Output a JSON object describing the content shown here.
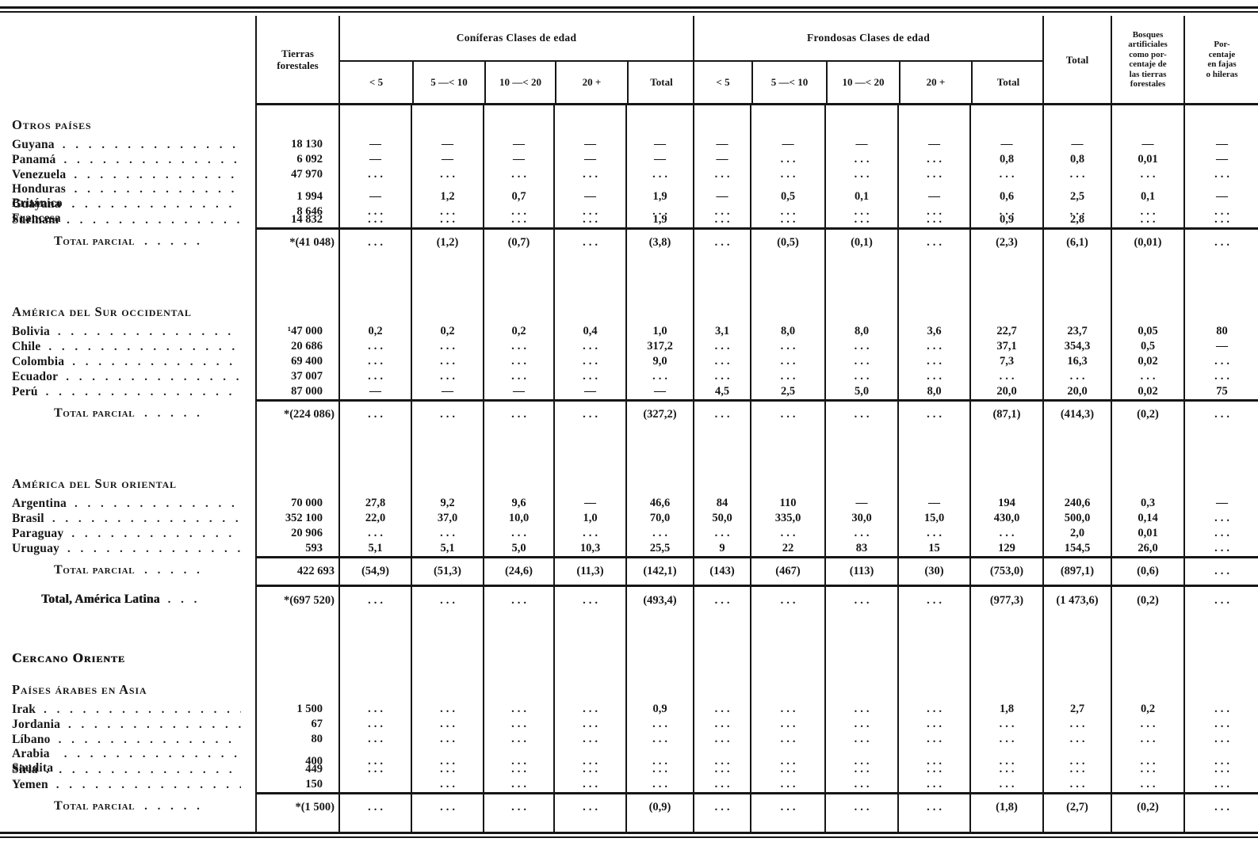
{
  "colors": {
    "ink": "#161616",
    "paper": "#ffffff"
  },
  "header": {
    "tierras": "Tierras\nforestales",
    "coniferas_group": "Coníferas Clases de edad",
    "frondosas_group": "Frondosas Clases de edad",
    "age_classes": [
      "< 5",
      "5 —< 10",
      "10 —< 20",
      "20 +",
      "Total"
    ],
    "total_label": "Total",
    "bosques": "Bosques\nartificiales\ncomo por-\ncentaje de\nlas tierras\nforestales",
    "porcentaje": "Por-\ncentaje\nen fajas\no hileras"
  },
  "rows": [
    {
      "type": "section",
      "label": "Otros países"
    },
    {
      "type": "country",
      "label": "Guyana",
      "cells": [
        "18 130",
        "—",
        "—",
        "—",
        "—",
        "—",
        "—",
        "—",
        "—",
        "—",
        "—",
        "—",
        "—",
        "—"
      ]
    },
    {
      "type": "country",
      "label": "Panamá",
      "cells": [
        "6 092",
        "—",
        "—",
        "—",
        "—",
        "—",
        "—",
        "...",
        "...",
        "...",
        "0,8",
        "0,8",
        "0,01",
        "—"
      ]
    },
    {
      "type": "country",
      "label": "Venezuela",
      "cells": [
        "47 970",
        "...",
        "...",
        "...",
        "...",
        "...",
        "...",
        "...",
        "...",
        "...",
        "...",
        "...",
        "...",
        "..."
      ]
    },
    {
      "type": "country",
      "label": "Honduras Británico",
      "cells": [
        "1 994",
        "—",
        "1,2",
        "0,7",
        "—",
        "1,9",
        "—",
        "0,5",
        "0,1",
        "—",
        "0,6",
        "2,5",
        "0,1",
        "—"
      ]
    },
    {
      "type": "country",
      "label": "Guayana Francesa",
      "cells": [
        "8 646",
        "...",
        "...",
        "...",
        "...",
        "...",
        "...",
        "...",
        "...",
        "...",
        "...",
        "...",
        "...",
        "..."
      ]
    },
    {
      "type": "country",
      "label": "Surinam",
      "cells": [
        "14 832",
        "...",
        "...",
        "...",
        "...",
        "1,9",
        "...",
        "...",
        "...",
        "...",
        "0,9",
        "2,8",
        "...",
        "..."
      ]
    },
    {
      "type": "subtotal",
      "label": "Total parcial",
      "cells": [
        "*(41 048)",
        "...",
        "(1,2)",
        "(0,7)",
        "...",
        "(3,8)",
        "...",
        "(0,5)",
        "(0,1)",
        "...",
        "(2,3)",
        "(6,1)",
        "(0,01)",
        "..."
      ]
    },
    {
      "type": "gap"
    },
    {
      "type": "section",
      "label": "América del Sur occidental"
    },
    {
      "type": "country",
      "label": "Bolivia",
      "cells": [
        "¹47 000",
        "0,2",
        "0,2",
        "0,2",
        "0,4",
        "1,0",
        "3,1",
        "8,0",
        "8,0",
        "3,6",
        "22,7",
        "23,7",
        "0,05",
        "80"
      ]
    },
    {
      "type": "country",
      "label": "Chile",
      "cells": [
        "20 686",
        "...",
        "...",
        "...",
        "...",
        "317,2",
        "...",
        "...",
        "...",
        "...",
        "37,1",
        "354,3",
        "0,5",
        "—"
      ]
    },
    {
      "type": "country",
      "label": "Colombia",
      "cells": [
        "69 400",
        "...",
        "...",
        "...",
        "...",
        "9,0",
        "...",
        "...",
        "...",
        "...",
        "7,3",
        "16,3",
        "0,02",
        "..."
      ]
    },
    {
      "type": "country",
      "label": "Ecuador",
      "cells": [
        "37 007",
        "...",
        "...",
        "...",
        "...",
        "...",
        "...",
        "...",
        "...",
        "...",
        "...",
        "...",
        "...",
        "..."
      ]
    },
    {
      "type": "country",
      "label": "Perú",
      "cells": [
        "87 000",
        "—",
        "—",
        "—",
        "—",
        "—",
        "4,5",
        "2,5",
        "5,0",
        "8,0",
        "20,0",
        "20,0",
        "0,02",
        "75"
      ]
    },
    {
      "type": "subtotal",
      "label": "Total parcial",
      "cells": [
        "*(224 086)",
        "...",
        "...",
        "...",
        "...",
        "(327,2)",
        "...",
        "...",
        "...",
        "...",
        "(87,1)",
        "(414,3)",
        "(0,2)",
        "..."
      ]
    },
    {
      "type": "gap"
    },
    {
      "type": "section",
      "label": "América del Sur oriental"
    },
    {
      "type": "country",
      "label": "Argentina",
      "cells": [
        "70 000",
        "27,8",
        "9,2",
        "9,6",
        "—",
        "46,6",
        "84",
        "110",
        "—",
        "—",
        "194",
        "240,6",
        "0,3",
        "—"
      ]
    },
    {
      "type": "country",
      "label": "Brasil",
      "cells": [
        "352 100",
        "22,0",
        "37,0",
        "10,0",
        "1,0",
        "70,0",
        "50,0",
        "335,0",
        "30,0",
        "15,0",
        "430,0",
        "500,0",
        "0,14",
        "..."
      ]
    },
    {
      "type": "country",
      "label": "Paraguay",
      "cells": [
        "20 906",
        "...",
        "...",
        "...",
        "...",
        "...",
        "...",
        "...",
        "...",
        "...",
        "...",
        "2,0",
        "0,01",
        "..."
      ]
    },
    {
      "type": "country",
      "label": "Uruguay",
      "cells": [
        "593",
        "5,1",
        "5,1",
        "5,0",
        "10,3",
        "25,5",
        "9",
        "22",
        "83",
        "15",
        "129",
        "154,5",
        "26,0",
        "..."
      ]
    },
    {
      "type": "subtotal",
      "label": "Total parcial",
      "cells": [
        "422 693",
        "(54,9)",
        "(51,3)",
        "(24,6)",
        "(11,3)",
        "(142,1)",
        "(143)",
        "(467)",
        "(113)",
        "(30)",
        "(753,0)",
        "(897,1)",
        "(0,6)",
        "..."
      ]
    },
    {
      "type": "grand",
      "label": "Total, América Latina",
      "cells": [
        "*(697 520)",
        "...",
        "...",
        "...",
        "...",
        "(493,4)",
        "...",
        "...",
        "...",
        "...",
        "(977,3)",
        "(1 473,6)",
        "(0,2)",
        "..."
      ]
    },
    {
      "type": "gap_small"
    },
    {
      "type": "section_bold",
      "label": "Cercano Oriente"
    },
    {
      "type": "section",
      "label": "Países árabes en Asia"
    },
    {
      "type": "country",
      "label": "Irak",
      "cells": [
        "1 500",
        "...",
        "...",
        "...",
        "...",
        "0,9",
        "...",
        "...",
        "...",
        "...",
        "1,8",
        "2,7",
        "0,2",
        "..."
      ]
    },
    {
      "type": "country",
      "label": "Jordania",
      "cells": [
        "67",
        "...",
        "...",
        "...",
        "...",
        "...",
        "...",
        "...",
        "...",
        "...",
        "...",
        "...",
        "...",
        "..."
      ]
    },
    {
      "type": "country",
      "label": "Líbano",
      "cells": [
        "80",
        "...",
        "...",
        "...",
        "...",
        "...",
        "...",
        "...",
        "...",
        "...",
        "...",
        "...",
        "...",
        "..."
      ]
    },
    {
      "type": "country",
      "label": "Arabia Saudita",
      "cells": [
        "400",
        "...",
        "...",
        "...",
        "...",
        "...",
        "...",
        "...",
        "...",
        "...",
        "...",
        "...",
        "...",
        "..."
      ]
    },
    {
      "type": "country",
      "label": "Siria",
      "cells": [
        "449",
        "...",
        "...",
        "...",
        "...",
        "...",
        "...",
        "...",
        "...",
        "...",
        "...",
        "...",
        "...",
        "..."
      ]
    },
    {
      "type": "country",
      "label": "Yemen",
      "cells": [
        "150",
        "",
        "...",
        "...",
        "...",
        "...",
        "...",
        "...",
        "...",
        "...",
        "...",
        "...",
        "...",
        "..."
      ]
    },
    {
      "type": "subtotal",
      "label": "Total parcial",
      "cells": [
        "*(1 500)",
        "...",
        "...",
        "...",
        "...",
        "(0,9)",
        "...",
        "...",
        "...",
        "...",
        "(1,8)",
        "(2,7)",
        "(0,2)",
        "..."
      ]
    },
    {
      "type": "tail"
    }
  ]
}
